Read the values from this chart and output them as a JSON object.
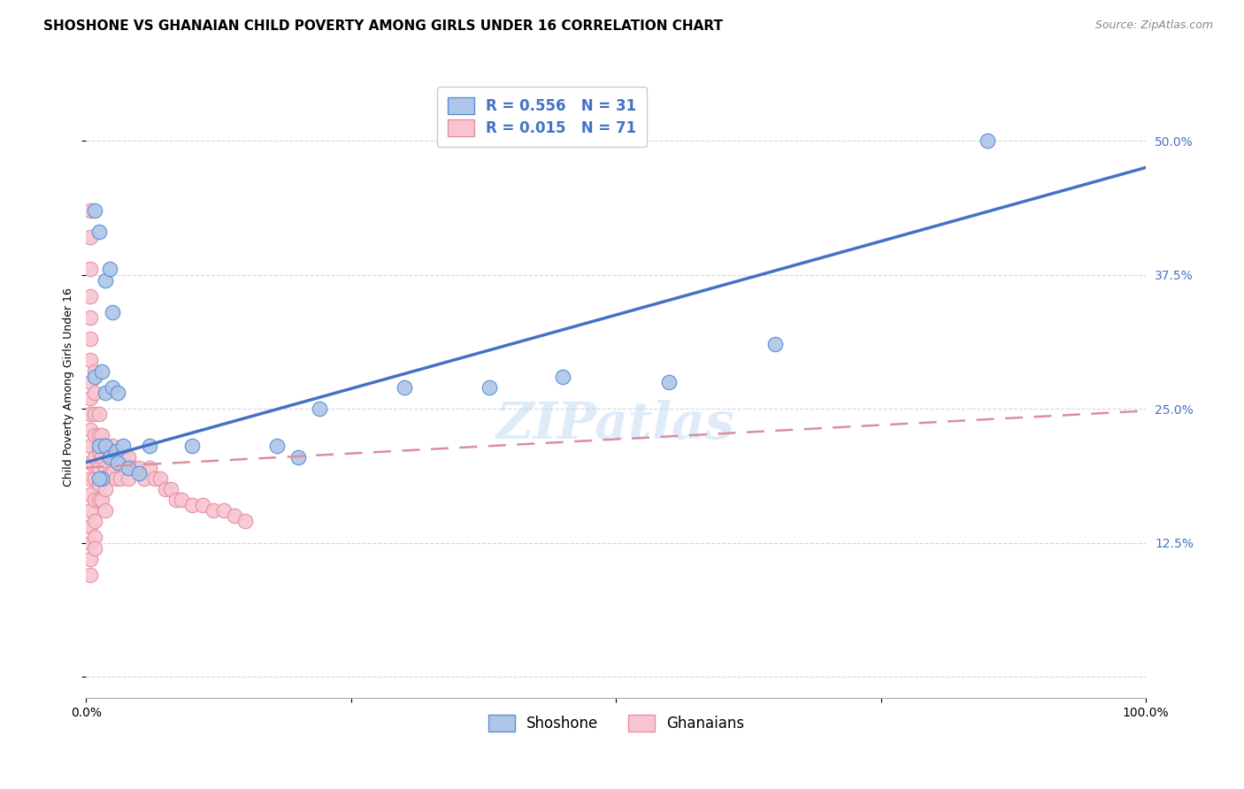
{
  "title": "SHOSHONE VS GHANAIAN CHILD POVERTY AMONG GIRLS UNDER 16 CORRELATION CHART",
  "source": "Source: ZipAtlas.com",
  "ylabel": "Child Poverty Among Girls Under 16",
  "watermark": "ZIPatlas",
  "shoshone_R": 0.556,
  "shoshone_N": 31,
  "ghanaian_R": 0.015,
  "ghanaian_N": 71,
  "xlim": [
    0,
    1.0
  ],
  "ylim": [
    -0.02,
    0.56
  ],
  "xticks": [
    0.0,
    0.25,
    0.5,
    0.75,
    1.0
  ],
  "xtick_labels": [
    "0.0%",
    "",
    "",
    "",
    "100.0%"
  ],
  "yticks": [
    0.0,
    0.125,
    0.25,
    0.375,
    0.5
  ],
  "ytick_labels": [
    "",
    "12.5%",
    "25.0%",
    "37.5%",
    "50.0%"
  ],
  "shoshone_fill_color": "#aec6e8",
  "ghanaian_fill_color": "#f7c5d0",
  "shoshone_edge_color": "#5b8fd4",
  "ghanaian_edge_color": "#e88fa4",
  "shoshone_line_color": "#4472c4",
  "ghanaian_line_color": "#d98fa0",
  "shoshone_x": [
    0.008,
    0.012,
    0.018,
    0.022,
    0.025,
    0.008,
    0.015,
    0.018,
    0.025,
    0.03,
    0.012,
    0.018,
    0.022,
    0.028,
    0.035,
    0.06,
    0.1,
    0.18,
    0.2,
    0.03,
    0.04,
    0.05,
    0.015,
    0.012,
    0.85,
    0.65,
    0.55,
    0.45,
    0.38,
    0.3,
    0.22
  ],
  "shoshone_y": [
    0.435,
    0.415,
    0.37,
    0.38,
    0.34,
    0.28,
    0.285,
    0.265,
    0.27,
    0.265,
    0.215,
    0.215,
    0.205,
    0.21,
    0.215,
    0.215,
    0.215,
    0.215,
    0.205,
    0.2,
    0.195,
    0.19,
    0.185,
    0.185,
    0.5,
    0.31,
    0.275,
    0.28,
    0.27,
    0.27,
    0.25
  ],
  "ghanaian_x": [
    0.004,
    0.004,
    0.004,
    0.004,
    0.004,
    0.004,
    0.004,
    0.004,
    0.004,
    0.004,
    0.004,
    0.004,
    0.004,
    0.004,
    0.004,
    0.004,
    0.004,
    0.004,
    0.004,
    0.004,
    0.008,
    0.008,
    0.008,
    0.008,
    0.008,
    0.008,
    0.008,
    0.008,
    0.008,
    0.008,
    0.012,
    0.012,
    0.012,
    0.012,
    0.012,
    0.012,
    0.015,
    0.015,
    0.015,
    0.015,
    0.018,
    0.018,
    0.018,
    0.018,
    0.022,
    0.022,
    0.025,
    0.025,
    0.028,
    0.028,
    0.032,
    0.032,
    0.035,
    0.04,
    0.04,
    0.045,
    0.05,
    0.055,
    0.06,
    0.065,
    0.07,
    0.075,
    0.08,
    0.085,
    0.09,
    0.1,
    0.11,
    0.12,
    0.13,
    0.14,
    0.15
  ],
  "ghanaian_y": [
    0.435,
    0.41,
    0.38,
    0.355,
    0.335,
    0.315,
    0.295,
    0.275,
    0.26,
    0.245,
    0.23,
    0.215,
    0.2,
    0.185,
    0.17,
    0.155,
    0.14,
    0.125,
    0.11,
    0.095,
    0.285,
    0.265,
    0.245,
    0.225,
    0.205,
    0.185,
    0.165,
    0.145,
    0.13,
    0.12,
    0.245,
    0.225,
    0.21,
    0.195,
    0.18,
    0.165,
    0.225,
    0.205,
    0.185,
    0.165,
    0.215,
    0.195,
    0.175,
    0.155,
    0.21,
    0.19,
    0.215,
    0.19,
    0.21,
    0.185,
    0.205,
    0.185,
    0.205,
    0.205,
    0.185,
    0.195,
    0.195,
    0.185,
    0.195,
    0.185,
    0.185,
    0.175,
    0.175,
    0.165,
    0.165,
    0.16,
    0.16,
    0.155,
    0.155,
    0.15,
    0.145
  ],
  "title_fontsize": 11,
  "axis_label_fontsize": 9,
  "tick_fontsize": 10,
  "legend_fontsize": 12,
  "source_fontsize": 9
}
